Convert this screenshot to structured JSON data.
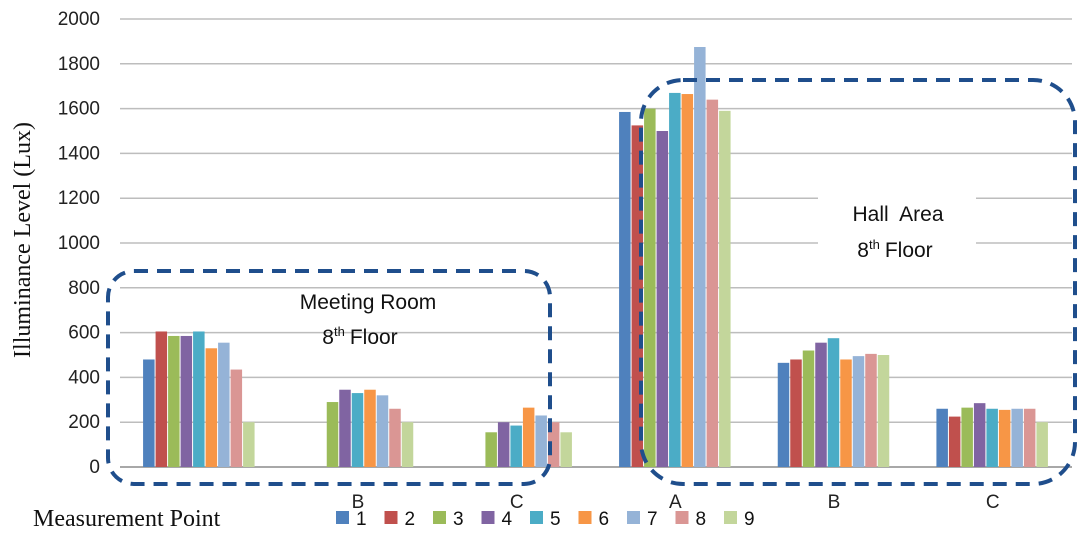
{
  "chart_data": {
    "type": "bar",
    "ylabel": "Illuminance Level (Lux)",
    "xlabel": "Measurement Point",
    "ylim": [
      0,
      2000
    ],
    "yticks": [
      "0",
      "200",
      "400",
      "600",
      "800",
      "1000",
      "1200",
      "1400",
      "1600",
      "1800",
      "2000"
    ],
    "grid": true,
    "legend_position": "bottom",
    "categories": [
      "",
      "B",
      "C",
      "A",
      "B",
      "C"
    ],
    "series": [
      {
        "name": "1",
        "color": "#4F81BD",
        "values": [
          480,
          null,
          null,
          1585,
          465,
          260
        ]
      },
      {
        "name": "2",
        "color": "#C0504D",
        "values": [
          605,
          null,
          null,
          1525,
          480,
          225
        ]
      },
      {
        "name": "3",
        "color": "#9BBB59",
        "values": [
          585,
          290,
          155,
          1600,
          520,
          265
        ]
      },
      {
        "name": "4",
        "color": "#8064A2",
        "values": [
          585,
          345,
          200,
          1500,
          555,
          285
        ]
      },
      {
        "name": "5",
        "color": "#4BACC6",
        "values": [
          605,
          330,
          185,
          1670,
          575,
          260
        ]
      },
      {
        "name": "6",
        "color": "#F79646",
        "values": [
          530,
          345,
          265,
          1665,
          480,
          255
        ]
      },
      {
        "name": "7",
        "color": "#95B3D7",
        "values": [
          555,
          320,
          230,
          1875,
          495,
          260
        ]
      },
      {
        "name": "8",
        "color": "#DA9694",
        "values": [
          435,
          260,
          200,
          1640,
          505,
          260
        ]
      },
      {
        "name": "9",
        "color": "#C3D69B",
        "values": [
          200,
          200,
          155,
          1590,
          500,
          200
        ]
      }
    ],
    "annotations": [
      {
        "title": "Meeting Room",
        "floor": "8",
        "floor_suffix": "th",
        "floor_word": "Floor"
      },
      {
        "title": "Hall  Area",
        "floor": "8",
        "floor_suffix": "th",
        "floor_word": "Floor"
      }
    ]
  }
}
